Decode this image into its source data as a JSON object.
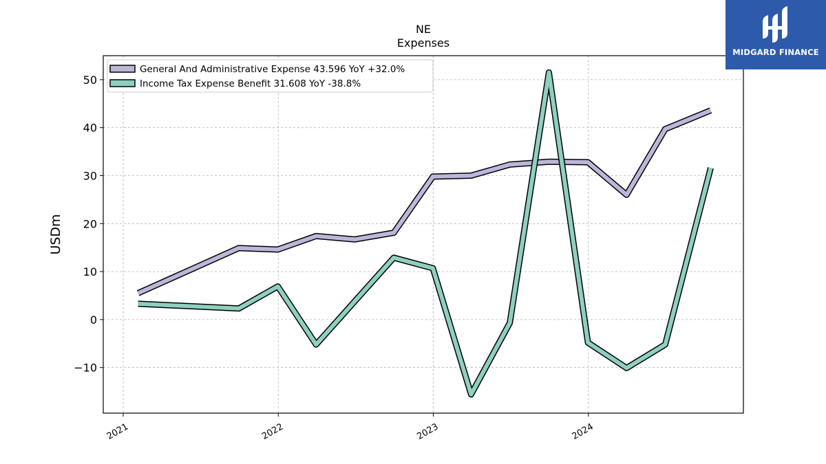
{
  "brand": {
    "name": "MIDGARD FINANCE",
    "bg_color": "#2e5aac"
  },
  "chart_data": {
    "type": "line",
    "title": "NE",
    "subtitle": "Expenses",
    "xlabel": "",
    "ylabel": "USDm",
    "x_ticks": [
      "2021",
      "2022",
      "2023",
      "2024"
    ],
    "y_ticks": [
      "50",
      "40",
      "30",
      "20",
      "10",
      "0",
      "−10"
    ],
    "ylim": [
      -19.5,
      55
    ],
    "xlim": [
      "2020-11-15",
      "2024-12-31"
    ],
    "grid": true,
    "legend_position": "top-left",
    "series": [
      {
        "name": "General And Administrative Expense",
        "legend": "General And Administrative Expense  43.596 YoY +32.0%",
        "color": "#bcb6d9",
        "x": [
          "2021-02-05",
          "2021-09-30",
          "2021-12-31",
          "2022-03-31",
          "2022-06-30",
          "2022-09-30",
          "2022-12-31",
          "2023-03-31",
          "2023-06-30",
          "2023-09-30",
          "2023-12-31",
          "2024-03-31",
          "2024-06-30",
          "2024-10-15"
        ],
        "values": [
          5.5,
          14.9,
          14.6,
          17.4,
          16.7,
          18.1,
          29.8,
          30.0,
          32.3,
          32.9,
          32.8,
          26.0,
          39.7,
          43.6
        ]
      },
      {
        "name": "Income Tax Expense Benefit",
        "legend": "Income Tax Expense Benefit  31.608 YoY -38.8%",
        "color": "#8ecfc0",
        "x": [
          "2021-02-05",
          "2021-09-30",
          "2021-12-31",
          "2022-03-31",
          "2022-06-30",
          "2022-09-30",
          "2022-12-31",
          "2023-03-31",
          "2023-06-30",
          "2023-09-30",
          "2023-12-31",
          "2024-03-31",
          "2024-06-30",
          "2024-10-15"
        ],
        "values": [
          3.3,
          2.3,
          6.9,
          -5.2,
          3.8,
          12.9,
          10.7,
          -15.6,
          -0.7,
          51.5,
          -4.8,
          -10.1,
          -5.2,
          31.6
        ]
      }
    ]
  }
}
